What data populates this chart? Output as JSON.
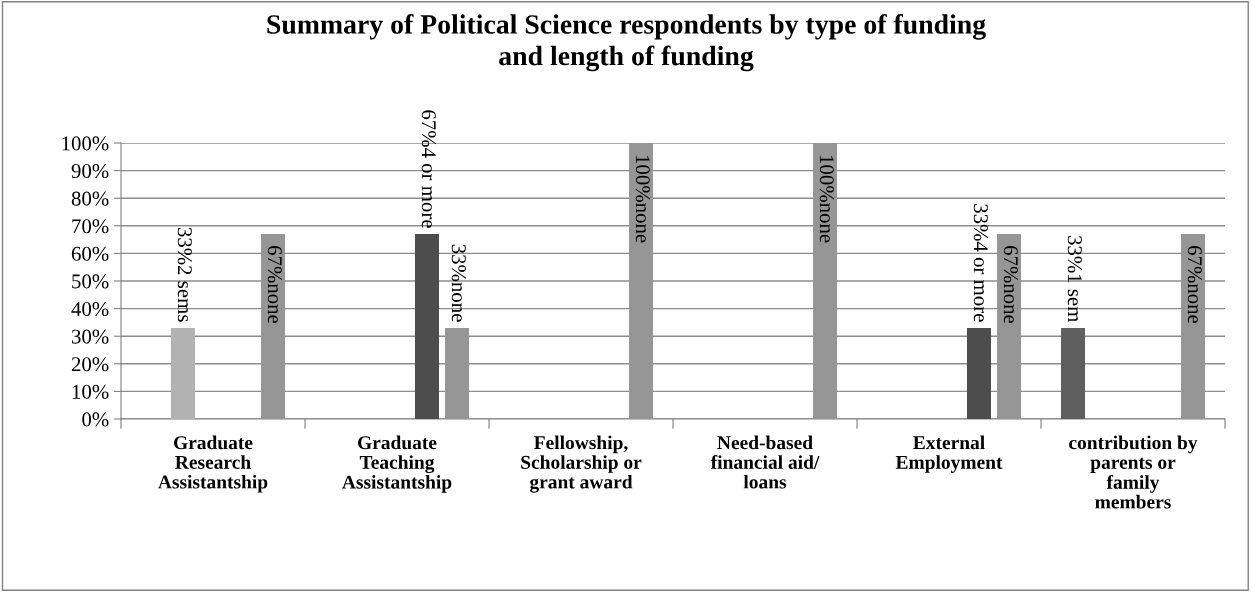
{
  "chart_data": {
    "type": "bar",
    "title": "Summary of Political Science respondents by type of funding\nand length of funding",
    "categories": [
      "Graduate\nResearch\nAssistantship",
      "Graduate\nTeaching\nAssistantship",
      "Fellowship,\nScholarship or\ngrant award",
      "Need-based\nfinancial aid/\nloans",
      "External\nEmployment",
      "contribution by\nparents or\nfamily\nmembers"
    ],
    "series": [
      {
        "color": "#5f5f5f",
        "values": [
          null,
          null,
          null,
          null,
          null,
          33
        ],
        "value_labels": [
          null,
          null,
          null,
          null,
          null,
          "33%1 sem"
        ]
      },
      {
        "color": "#b2b2b2",
        "values": [
          33,
          null,
          null,
          null,
          null,
          null
        ],
        "value_labels": [
          "33%2 sems",
          null,
          null,
          null,
          null,
          null
        ]
      },
      {
        "color": "#808080",
        "values": [
          null,
          null,
          null,
          null,
          null,
          null
        ],
        "value_labels": [
          null,
          null,
          null,
          null,
          null,
          null
        ]
      },
      {
        "color": "#4d4d4d",
        "values": [
          null,
          67,
          null,
          null,
          33,
          null
        ],
        "value_labels": [
          null,
          "67%4 or more",
          null,
          null,
          "33%4 or more",
          null
        ]
      },
      {
        "color": "#969696",
        "values": [
          67,
          33,
          100,
          100,
          67,
          67
        ],
        "value_labels": [
          "67%none",
          "33%none",
          "100%none",
          "100%none",
          "67%none",
          "67%none"
        ]
      }
    ],
    "ylim": [
      0,
      100
    ],
    "yticks": [
      {
        "value": 0,
        "label": "0%"
      },
      {
        "value": 10,
        "label": "10%"
      },
      {
        "value": 20,
        "label": "20%"
      },
      {
        "value": 30,
        "label": "30%"
      },
      {
        "value": 40,
        "label": "40%"
      },
      {
        "value": 50,
        "label": "50%"
      },
      {
        "value": 60,
        "label": "60%"
      },
      {
        "value": 70,
        "label": "70%"
      },
      {
        "value": 80,
        "label": "80%"
      },
      {
        "value": 90,
        "label": "90%"
      },
      {
        "value": 100,
        "label": "100%"
      }
    ],
    "grid": "y",
    "legend": false
  }
}
